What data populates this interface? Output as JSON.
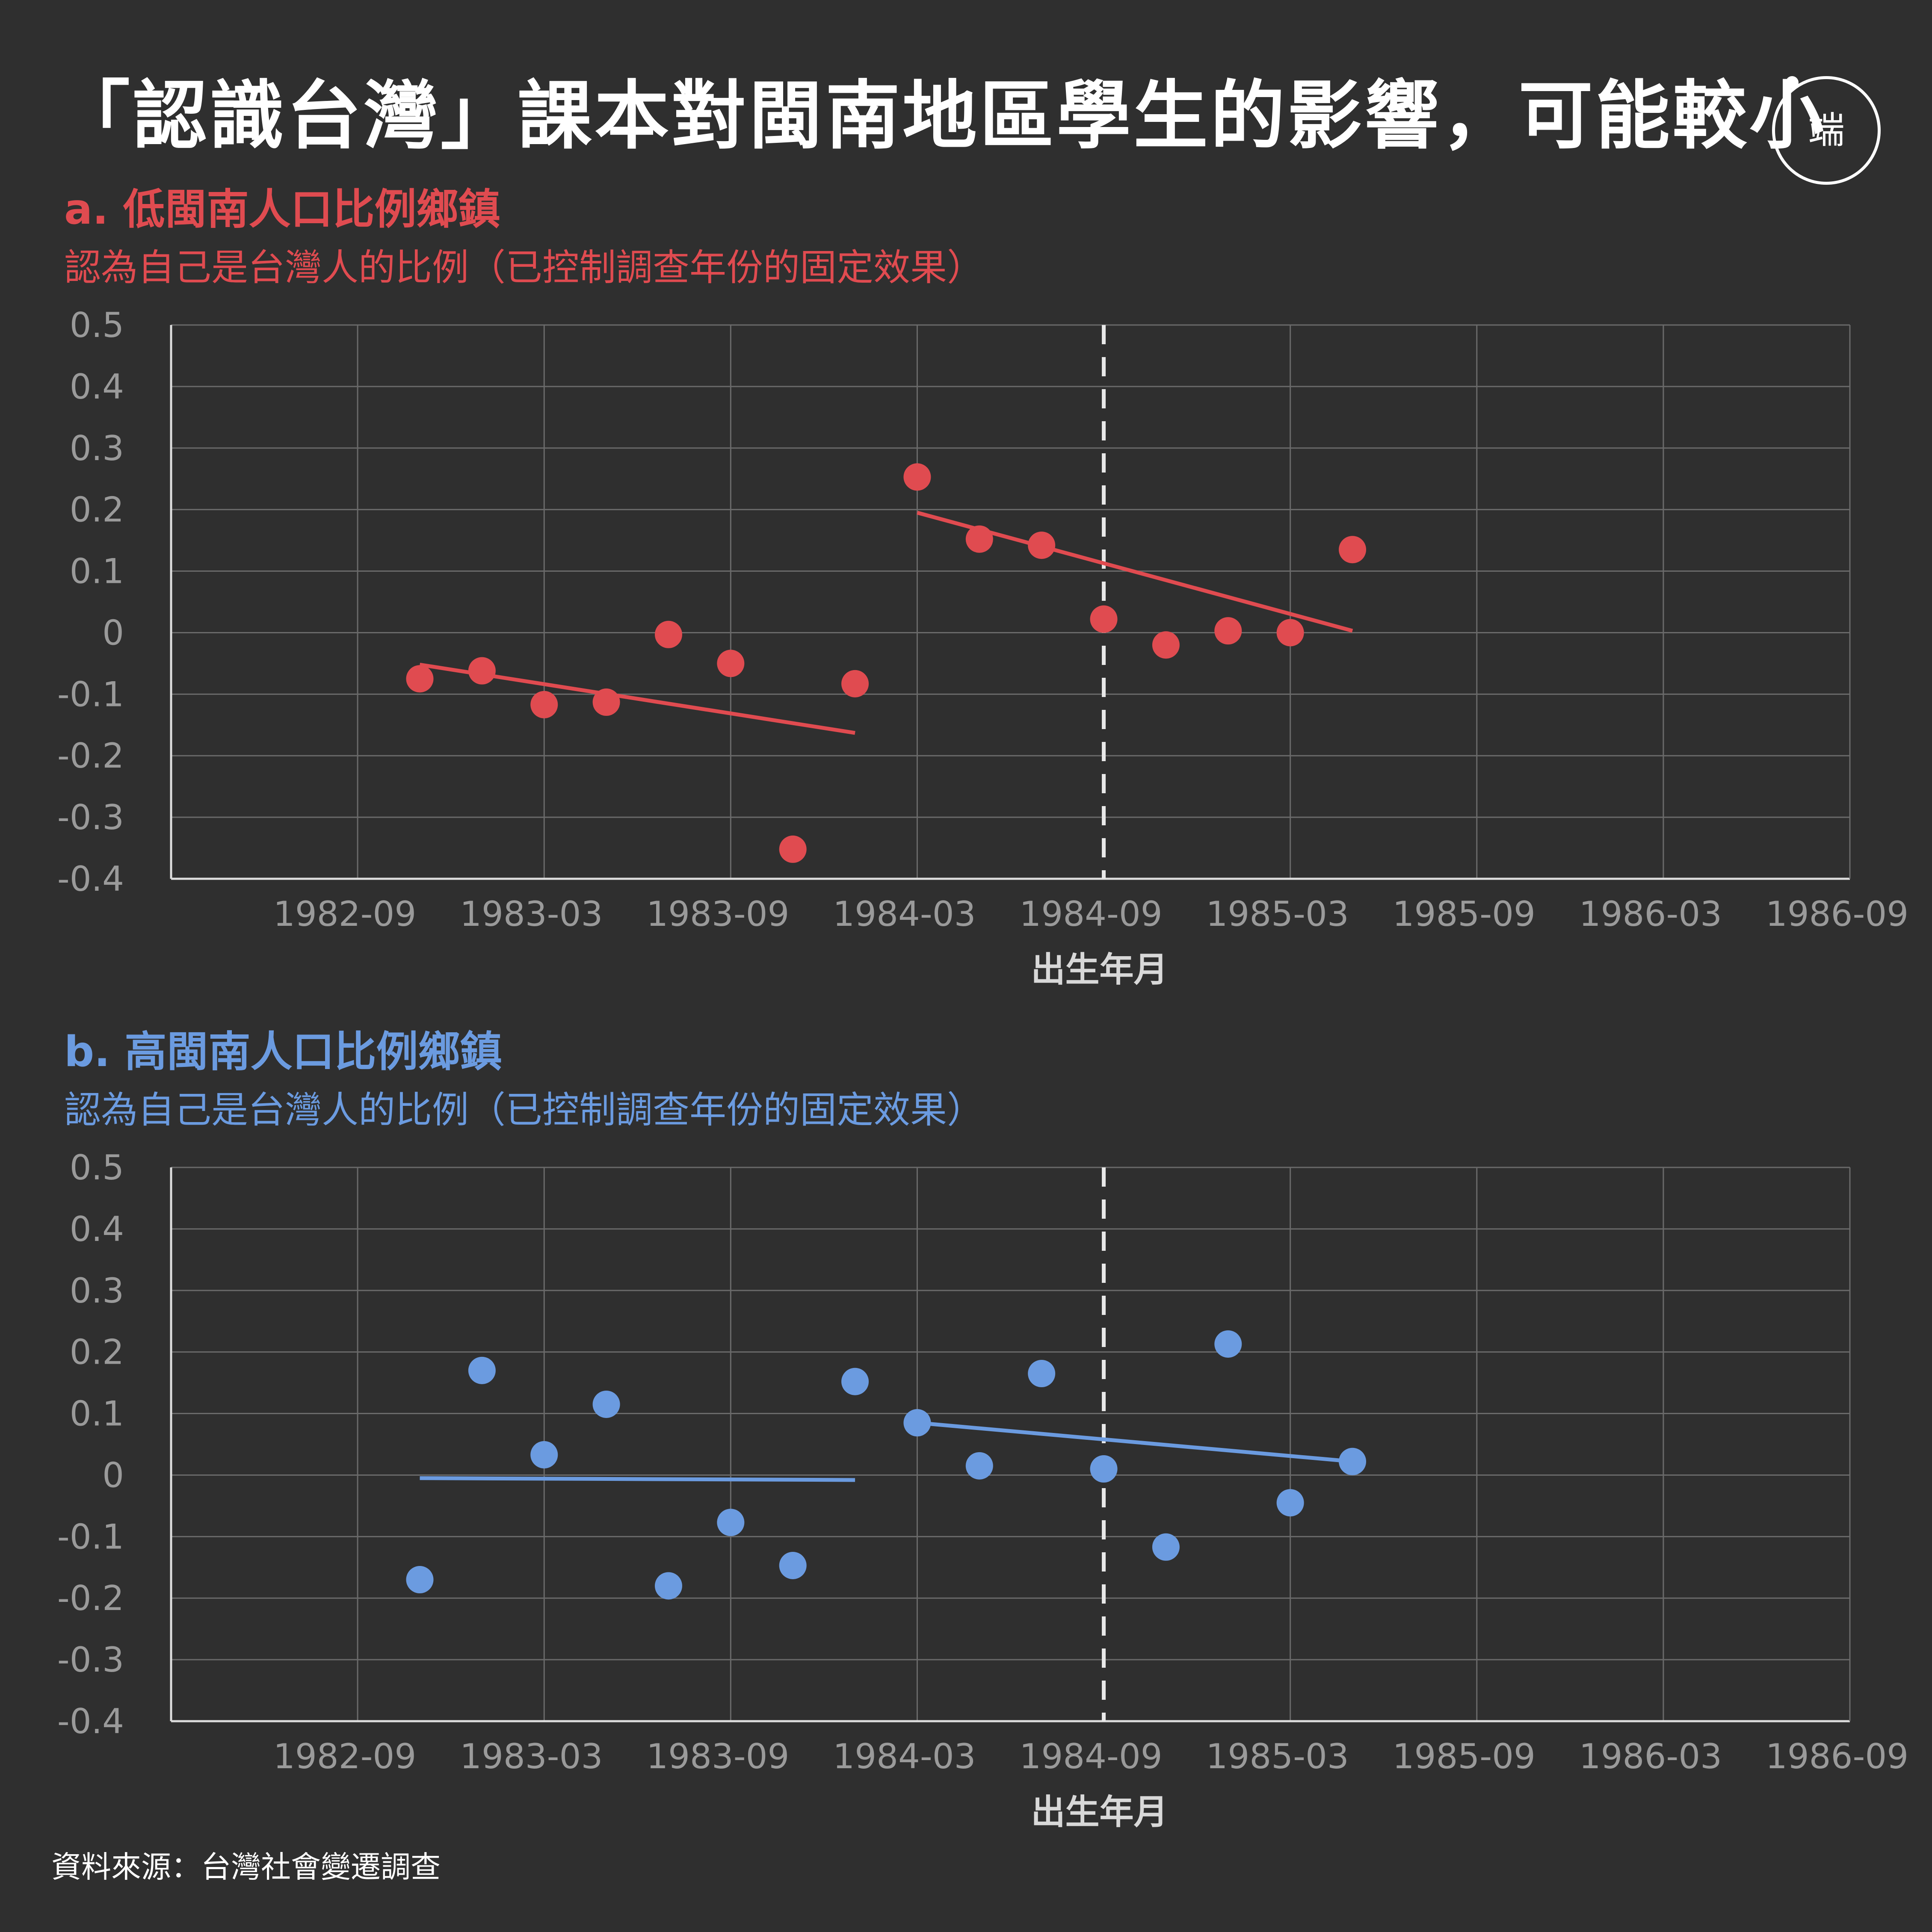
{
  "title": "「認識台灣」課本對閩南地區學生的影響，可能較小",
  "logo_text": "端",
  "source": "資料來源：台灣社會變遷調查",
  "chart_data": [
    {
      "type": "scatter",
      "panel_title": "a. 低閩南人口比例鄉鎮",
      "subtitle": "認為自己是台灣人的比例（已控制調查年份的固定效果）",
      "color": "#e04b50",
      "xlabel": "出生年月",
      "x_ticks": [
        "1982-09",
        "1983-03",
        "1983-09",
        "1984-03",
        "1984-09",
        "1985-03",
        "1985-09",
        "1986-03",
        "1986-09"
      ],
      "y_ticks": [
        "0.5",
        "0.4",
        "0.3",
        "0.2",
        "0.1",
        "0",
        "-0.1",
        "-0.2",
        "-0.3",
        "-0.4"
      ],
      "ylim": [
        -0.4,
        0.5
      ],
      "cutoff": "1984-09",
      "points": [
        {
          "x": "1982-11",
          "y": -0.075
        },
        {
          "x": "1983-01",
          "y": -0.062
        },
        {
          "x": "1983-03",
          "y": -0.117
        },
        {
          "x": "1983-05",
          "y": -0.113
        },
        {
          "x": "1983-07",
          "y": -0.003
        },
        {
          "x": "1983-09",
          "y": -0.05
        },
        {
          "x": "1983-11",
          "y": -0.352
        },
        {
          "x": "1984-01",
          "y": -0.083
        },
        {
          "x": "1984-03",
          "y": 0.253
        },
        {
          "x": "1984-05",
          "y": 0.152
        },
        {
          "x": "1984-07",
          "y": 0.142
        },
        {
          "x": "1984-09",
          "y": 0.022
        },
        {
          "x": "1984-11",
          "y": -0.02
        },
        {
          "x": "1985-01",
          "y": 0.003
        },
        {
          "x": "1985-03",
          "y": 0.0
        },
        {
          "x": "1985-05",
          "y": 0.135
        }
      ],
      "fit_lines": [
        {
          "x": [
            "1982-11",
            "1984-01"
          ],
          "y": [
            -0.052,
            -0.163
          ]
        },
        {
          "x": [
            "1984-03",
            "1985-05"
          ],
          "y": [
            0.195,
            0.003
          ]
        }
      ]
    },
    {
      "type": "scatter",
      "panel_title": "b. 高閩南人口比例鄉鎮",
      "subtitle": "認為自己是台灣人的比例（已控制調查年份的固定效果）",
      "color": "#6b9be0",
      "xlabel": "出生年月",
      "x_ticks": [
        "1982-09",
        "1983-03",
        "1983-09",
        "1984-03",
        "1984-09",
        "1985-03",
        "1985-09",
        "1986-03",
        "1986-09"
      ],
      "y_ticks": [
        "0.5",
        "0.4",
        "0.3",
        "0.2",
        "0.1",
        "0",
        "-0.1",
        "-0.2",
        "-0.3",
        "-0.4"
      ],
      "ylim": [
        -0.4,
        0.5
      ],
      "cutoff": "1984-09",
      "points": [
        {
          "x": "1982-11",
          "y": -0.17
        },
        {
          "x": "1983-01",
          "y": 0.17
        },
        {
          "x": "1983-03",
          "y": 0.033
        },
        {
          "x": "1983-05",
          "y": 0.115
        },
        {
          "x": "1983-07",
          "y": -0.18
        },
        {
          "x": "1983-09",
          "y": -0.077
        },
        {
          "x": "1983-11",
          "y": -0.147
        },
        {
          "x": "1984-01",
          "y": 0.152
        },
        {
          "x": "1984-03",
          "y": 0.085
        },
        {
          "x": "1984-05",
          "y": 0.015
        },
        {
          "x": "1984-07",
          "y": 0.165
        },
        {
          "x": "1984-09",
          "y": 0.01
        },
        {
          "x": "1984-11",
          "y": -0.117
        },
        {
          "x": "1985-01",
          "y": 0.213
        },
        {
          "x": "1985-03",
          "y": -0.045
        },
        {
          "x": "1985-05",
          "y": 0.022
        }
      ],
      "fit_lines": [
        {
          "x": [
            "1982-11",
            "1984-01"
          ],
          "y": [
            -0.005,
            -0.008
          ]
        },
        {
          "x": [
            "1984-03",
            "1985-05"
          ],
          "y": [
            0.085,
            0.022
          ]
        }
      ]
    }
  ]
}
